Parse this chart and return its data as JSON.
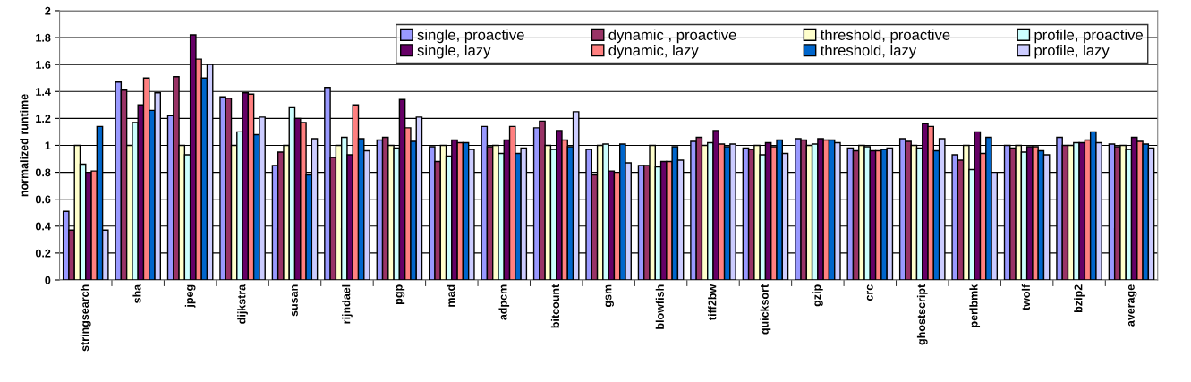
{
  "chart_data": {
    "type": "bar",
    "ylabel": "normalized runtime",
    "categories": [
      "stringsearch",
      "sha",
      "jpeg",
      "dijkstra",
      "susan",
      "rijndael",
      "pgp",
      "mad",
      "adpcm",
      "bitcount",
      "gsm",
      "blowfish",
      "tiff2bw",
      "quicksort",
      "gzip",
      "crc",
      "ghostscript",
      "perlbmk",
      "twolf",
      "bzip2",
      "average"
    ],
    "series": [
      {
        "name": "single, proactive",
        "color": "#9999ff",
        "values": [
          0.51,
          1.47,
          1.22,
          1.36,
          0.85,
          1.43,
          1.04,
          0.99,
          1.14,
          1.13,
          0.97,
          0.85,
          1.03,
          0.98,
          1.05,
          0.98,
          1.05,
          0.93,
          1.0,
          1.06,
          1.01
        ]
      },
      {
        "name": "dynamic , proactive",
        "color": "#993366",
        "values": [
          0.37,
          1.41,
          1.51,
          1.35,
          0.95,
          0.91,
          1.06,
          0.88,
          0.99,
          1.18,
          0.78,
          0.85,
          1.06,
          0.97,
          1.04,
          0.96,
          1.03,
          0.89,
          0.98,
          1.0,
          0.99
        ]
      },
      {
        "name": "threshold, proactive",
        "color": "#ffffcc",
        "values": [
          1.0,
          1.0,
          1.0,
          1.0,
          1.0,
          1.0,
          1.0,
          1.0,
          1.0,
          1.0,
          1.0,
          1.0,
          1.0,
          1.0,
          1.0,
          1.0,
          1.0,
          1.0,
          1.0,
          1.0,
          1.0
        ]
      },
      {
        "name": "profile, proactive",
        "color": "#ccffff",
        "values": [
          0.86,
          1.17,
          0.93,
          1.1,
          1.28,
          1.06,
          0.98,
          0.92,
          0.94,
          0.97,
          1.01,
          0.84,
          1.02,
          0.93,
          1.01,
          0.99,
          0.98,
          0.82,
          0.95,
          1.02,
          0.97
        ]
      },
      {
        "name": "single, lazy",
        "color": "#660066",
        "values": [
          0.8,
          1.3,
          1.82,
          1.39,
          1.2,
          0.93,
          1.34,
          1.04,
          1.04,
          1.11,
          0.81,
          0.88,
          1.11,
          1.02,
          1.05,
          0.96,
          1.16,
          1.1,
          0.99,
          1.02,
          1.06
        ]
      },
      {
        "name": "dynamic, lazy",
        "color": "#ff8080",
        "values": [
          0.81,
          1.5,
          1.64,
          1.38,
          1.17,
          1.3,
          1.13,
          1.02,
          1.14,
          1.04,
          0.8,
          0.88,
          1.01,
          0.99,
          1.04,
          0.96,
          1.14,
          0.94,
          0.99,
          1.04,
          1.03
        ]
      },
      {
        "name": "threshold, lazy",
        "color": "#0066cc",
        "values": [
          1.14,
          1.26,
          1.5,
          1.08,
          0.78,
          1.05,
          1.03,
          1.02,
          0.94,
          0.99,
          1.01,
          0.99,
          0.99,
          1.04,
          1.04,
          0.97,
          0.96,
          1.06,
          0.96,
          1.1,
          1.01
        ]
      },
      {
        "name": "profile, lazy",
        "color": "#ccccff",
        "values": [
          0.37,
          1.39,
          1.6,
          1.21,
          1.05,
          0.96,
          1.21,
          0.97,
          0.98,
          1.25,
          0.87,
          0.89,
          1.01,
          0.94,
          1.02,
          0.98,
          1.05,
          0.8,
          0.93,
          1.02,
          0.98
        ]
      }
    ],
    "ylim": [
      0,
      2
    ],
    "yticks": [
      0,
      0.2,
      0.4,
      0.6,
      0.8,
      1,
      1.2,
      1.4,
      1.6,
      1.8,
      2
    ],
    "grid": "y",
    "legend": "top right"
  }
}
